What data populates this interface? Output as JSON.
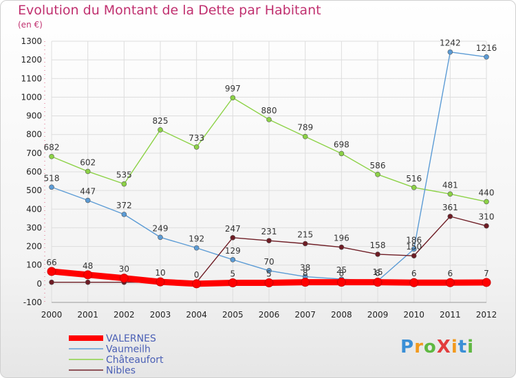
{
  "title": "Evolution du Montant de la Dette par Habitant",
  "subtitle": "(en €)",
  "logo": {
    "text": "ProXiti"
  },
  "colors": {
    "title": "#c0306f",
    "grid": "#dddddd",
    "axis": "#999999",
    "legend_text": "#4a5fb5"
  },
  "chart_data": {
    "type": "line",
    "x": [
      "2000",
      "2001",
      "2002",
      "2003",
      "2004",
      "2005",
      "2006",
      "2007",
      "2008",
      "2009",
      "2010",
      "2011",
      "2012"
    ],
    "ylim": [
      -100,
      1300
    ],
    "yticks": [
      -100,
      0,
      100,
      200,
      300,
      400,
      500,
      600,
      700,
      800,
      900,
      1000,
      1100,
      1200,
      1300
    ],
    "grid": true,
    "legend_position": "bottom-left",
    "series": [
      {
        "name": "Châteaufort",
        "color": "#8cd246",
        "values": [
          682,
          602,
          535,
          825,
          733,
          997,
          880,
          789,
          698,
          586,
          516,
          481,
          440
        ]
      },
      {
        "name": "Vaumeilh",
        "color": "#5b9bd5",
        "values": [
          518,
          447,
          372,
          249,
          192,
          129,
          70,
          38,
          25,
          15,
          186,
          1242,
          1216
        ]
      },
      {
        "name": "Nibles",
        "color": "#6e1c24",
        "values": [
          8,
          8,
          8,
          8,
          8,
          247,
          231,
          215,
          196,
          158,
          150,
          361,
          310
        ]
      },
      {
        "name": "VALERNES",
        "color": "#ff0000",
        "values": [
          66,
          48,
          30,
          10,
          0,
          5,
          5,
          8,
          8,
          8,
          6,
          6,
          7
        ]
      }
    ],
    "data_labels": [
      {
        "series": "Châteaufort",
        "labels": [
          "682",
          "602",
          "535",
          "825",
          "733",
          "997",
          "880",
          "789",
          "698",
          "586",
          "516",
          "481",
          "440"
        ]
      },
      {
        "series": "Vaumeilh",
        "labels": [
          "518",
          "447",
          "372",
          "249",
          "192",
          "129",
          "70",
          "38",
          "25",
          "15",
          "186",
          "1242",
          "1216"
        ]
      },
      {
        "series": "Nibles",
        "labels": [
          "",
          "",
          "",
          "",
          "",
          "247",
          "231",
          "215",
          "196",
          "158",
          "150",
          "361",
          "310"
        ]
      },
      {
        "series": "VALERNES",
        "labels": [
          "66",
          "48",
          "30",
          "10",
          "0",
          "5",
          "5",
          "8",
          "8",
          "8",
          "6",
          "6",
          "7"
        ]
      }
    ],
    "legend": [
      "VALERNES",
      "Vaumeilh",
      "Châteaufort",
      "Nibles"
    ]
  }
}
